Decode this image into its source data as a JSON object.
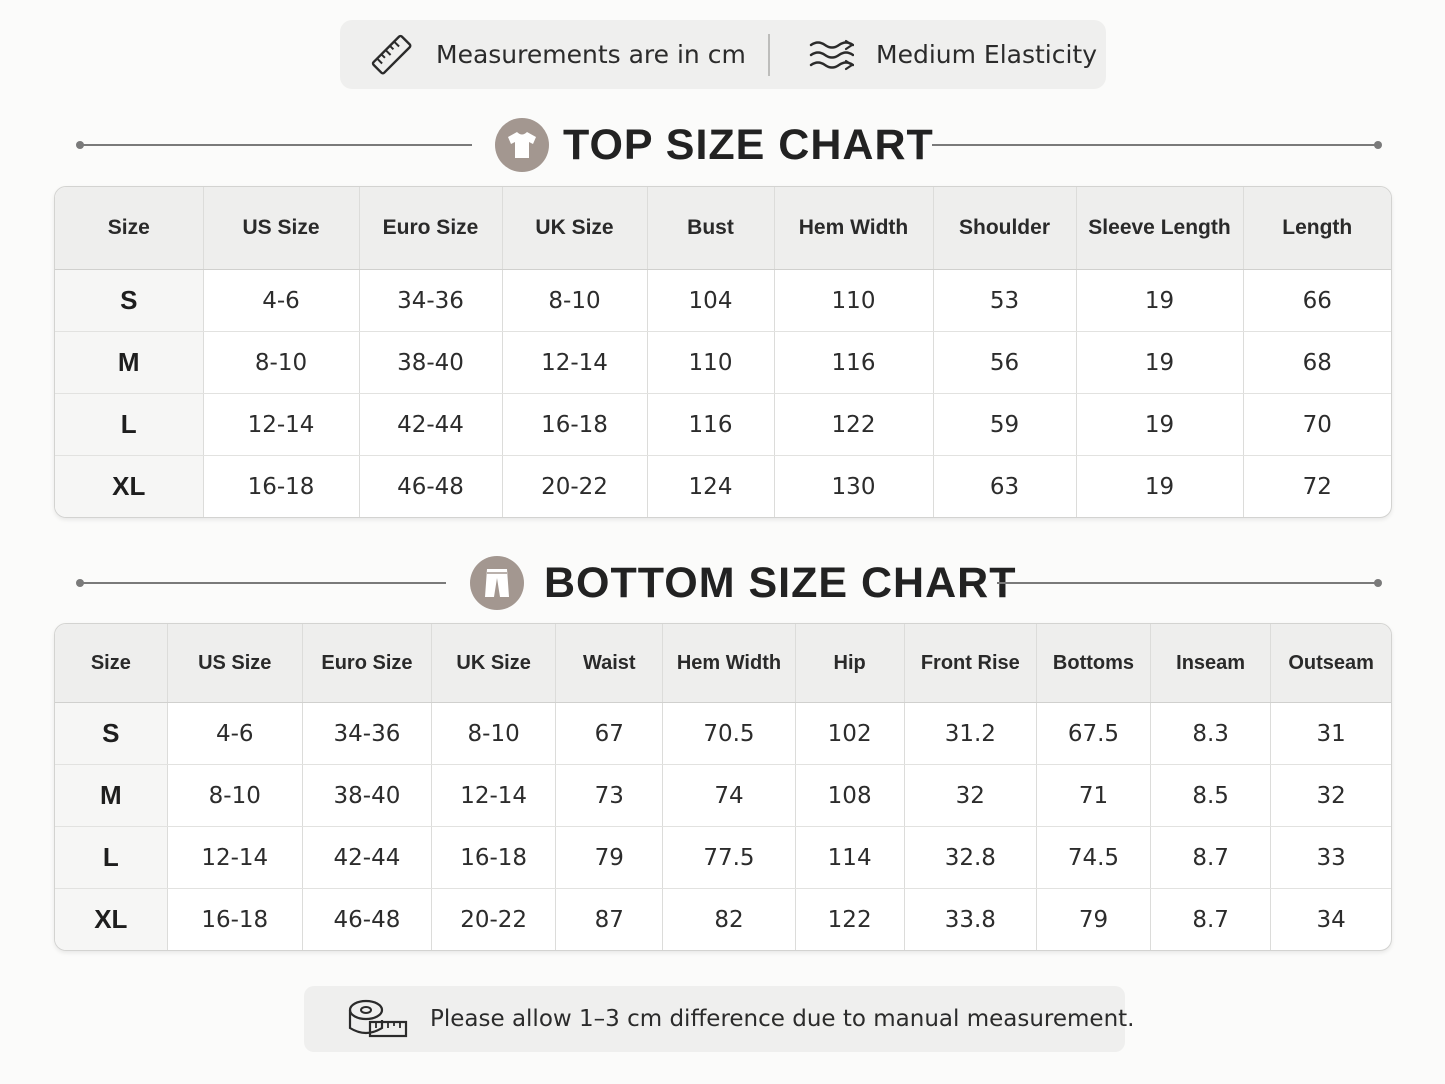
{
  "info": {
    "measurement_text": "Measurements are in cm",
    "elasticity_text": "Medium Elasticity",
    "measurement_icon": "ruler-icon",
    "elasticity_icon": "stretch-waves-icon"
  },
  "top_chart": {
    "title": "TOP SIZE CHART",
    "icon": "t-shirt-icon",
    "columns": [
      "Size",
      "US Size",
      "Euro Size",
      "UK Size",
      "Bust",
      "Hem Width",
      "Shoulder",
      "Sleeve Length",
      "Length"
    ],
    "rows": [
      [
        "S",
        "4-6",
        "34-36",
        "8-10",
        "104",
        "110",
        "53",
        "19",
        "66"
      ],
      [
        "M",
        "8-10",
        "38-40",
        "12-14",
        "110",
        "116",
        "56",
        "19",
        "68"
      ],
      [
        "L",
        "12-14",
        "42-44",
        "16-18",
        "116",
        "122",
        "59",
        "19",
        "70"
      ],
      [
        "XL",
        "16-18",
        "46-48",
        "20-22",
        "124",
        "130",
        "63",
        "19",
        "72"
      ]
    ]
  },
  "bottom_chart": {
    "title": "BOTTOM SIZE CHART",
    "icon": "pants-icon",
    "columns": [
      "Size",
      "US Size",
      "Euro Size",
      "UK Size",
      "Waist",
      "Hem Width",
      "Hip",
      "Front Rise",
      "Bottoms",
      "Inseam",
      "Outseam"
    ],
    "rows": [
      [
        "S",
        "4-6",
        "34-36",
        "8-10",
        "67",
        "70.5",
        "102",
        "31.2",
        "67.5",
        "8.3",
        "31"
      ],
      [
        "M",
        "8-10",
        "38-40",
        "12-14",
        "73",
        "74",
        "108",
        "32",
        "71",
        "8.5",
        "32"
      ],
      [
        "L",
        "12-14",
        "42-44",
        "16-18",
        "79",
        "77.5",
        "114",
        "32.8",
        "74.5",
        "8.7",
        "33"
      ],
      [
        "XL",
        "16-18",
        "46-48",
        "20-22",
        "87",
        "82",
        "122",
        "33.8",
        "79",
        "8.7",
        "34"
      ]
    ]
  },
  "note": {
    "text": "Please allow 1–3 cm difference due to manual measurement.",
    "icon": "tape-measure-icon"
  },
  "colors": {
    "badge": "#a39790",
    "header_bg": "#eeeeed",
    "pill_bg": "#efefee"
  }
}
